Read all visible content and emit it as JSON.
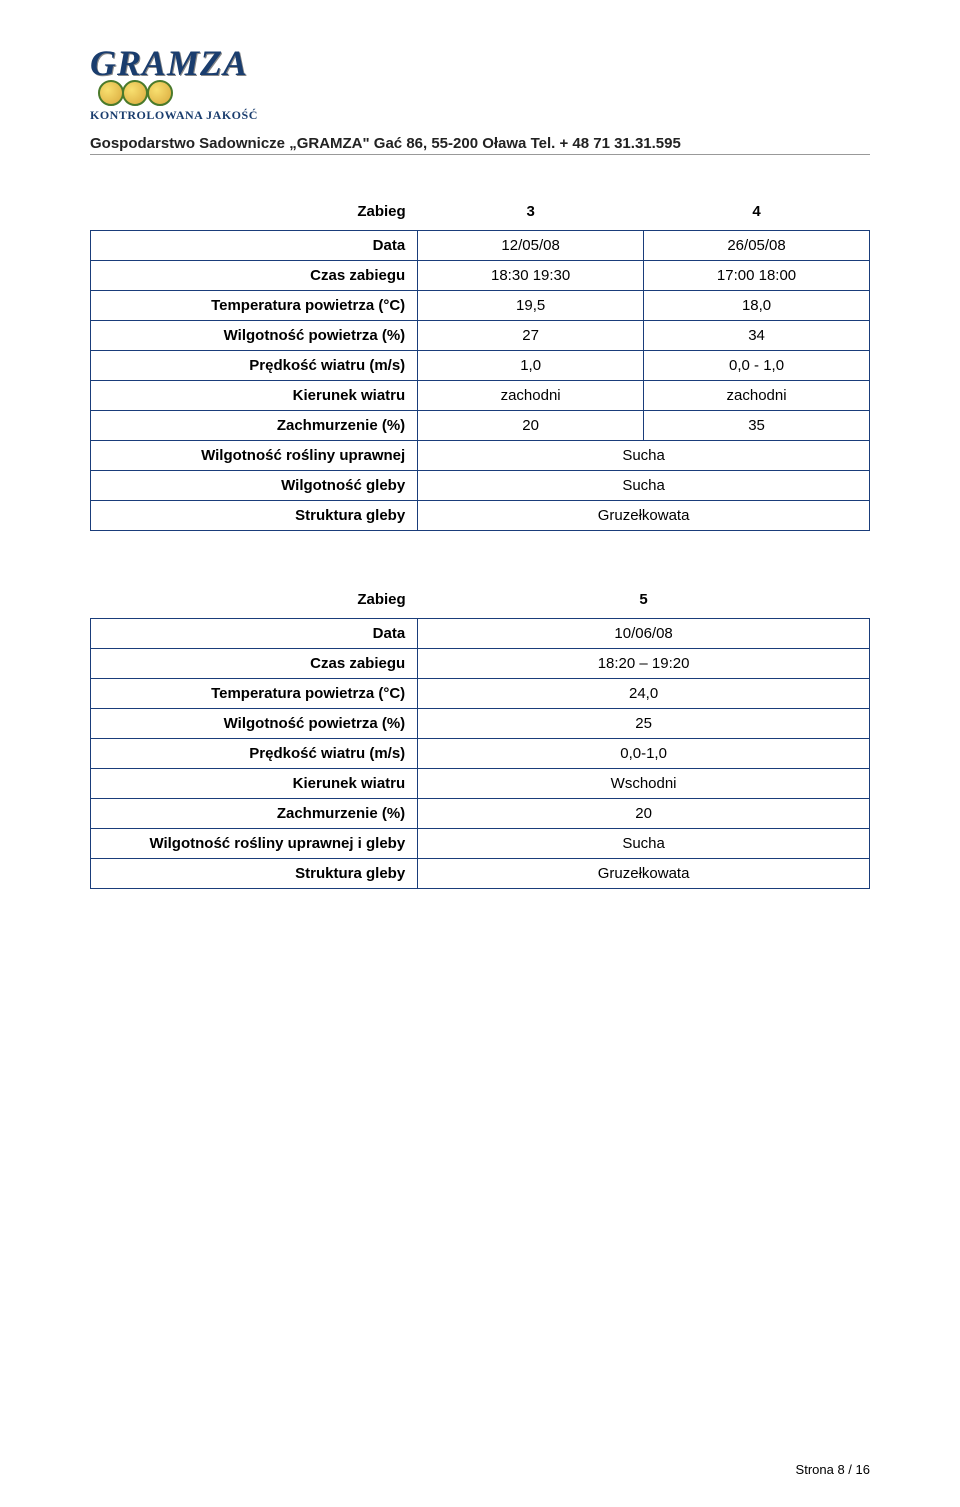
{
  "logo": {
    "brand": "GRAMZA",
    "tagline": "KONTROLOWANA JAKOŚĆ"
  },
  "header": {
    "text": "Gospodarstwo Sadownicze „GRAMZA\" Gać 86, 55-200 Oława Tel. + 48 71 31.31.595"
  },
  "table1": {
    "head": {
      "label": "Zabieg",
      "c1": "3",
      "c2": "4"
    },
    "rows": [
      {
        "label": "Data",
        "c1": "12/05/08",
        "c2": "26/05/08"
      },
      {
        "label": "Czas zabiegu",
        "c1": "18:30 19:30",
        "c2": "17:00 18:00"
      },
      {
        "label": "Temperatura powietrza (°C)",
        "c1": "19,5",
        "c2": "18,0"
      },
      {
        "label": "Wilgotność powietrza (%)",
        "c1": "27",
        "c2": "34"
      },
      {
        "label": "Prędkość wiatru (m/s)",
        "c1": "1,0",
        "c2": "0,0 - 1,0"
      },
      {
        "label": "Kierunek wiatru",
        "c1": "zachodni",
        "c2": "zachodni"
      },
      {
        "label": "Zachmurzenie (%)",
        "c1": "20",
        "c2": "35"
      },
      {
        "label": "Wilgotność rośliny uprawnej",
        "span": "Sucha"
      },
      {
        "label": "Wilgotność gleby",
        "span": "Sucha"
      },
      {
        "label": "Struktura gleby",
        "span": "Gruzełkowata"
      }
    ]
  },
  "table2": {
    "head": {
      "label": "Zabieg",
      "c1": "5"
    },
    "rows": [
      {
        "label": "Data",
        "c1": "10/06/08"
      },
      {
        "label": "Czas zabiegu",
        "c1": "18:20 – 19:20"
      },
      {
        "label": "Temperatura powietrza (°C)",
        "c1": "24,0"
      },
      {
        "label": "Wilgotność powietrza (%)",
        "c1": "25"
      },
      {
        "label": "Prędkość wiatru (m/s)",
        "c1": "0,0-1,0"
      },
      {
        "label": "Kierunek wiatru",
        "c1": "Wschodni"
      },
      {
        "label": "Zachmurzenie (%)",
        "c1": "20"
      },
      {
        "label": "Wilgotność rośliny uprawnej i gleby",
        "c1": "Sucha"
      },
      {
        "label": "Struktura gleby",
        "c1": "Gruzełkowata"
      }
    ]
  },
  "footer": {
    "text": "Strona 8 / 16"
  },
  "colors": {
    "border": "#1a3d7a",
    "text": "#222222",
    "logo_blue": "#1a3d6e",
    "background": "#ffffff"
  }
}
